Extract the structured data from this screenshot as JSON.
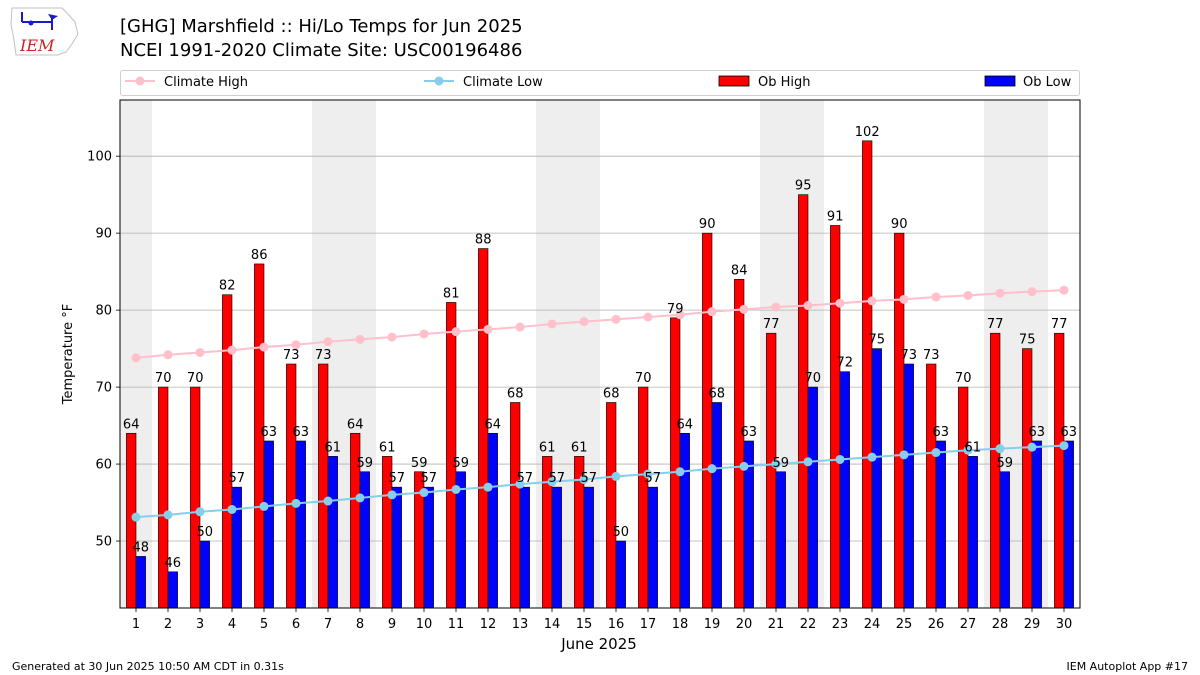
{
  "header": {
    "title_line1": "[GHG] Marshfield :: Hi/Lo Temps for Jun 2025",
    "title_line2": "NCEI 1991-2020 Climate Site: USC00196486",
    "logo_text": "IEM"
  },
  "footer": {
    "left": "Generated at 30 Jun 2025 10:50 AM CDT in 0.31s",
    "right": "IEM Autoplot App #17"
  },
  "colors": {
    "ob_high": "#ff0000",
    "ob_low": "#0000ff",
    "climate_high": "#ffc0cb",
    "climate_low": "#87ceeb",
    "weekend_band": "#eeeeee",
    "grid": "#b0b0b0"
  },
  "chart_data": {
    "type": "bar",
    "title": "[GHG] Marshfield :: Hi/Lo Temps for Jun 2025",
    "subtitle": "NCEI 1991-2020 Climate Site: USC00196486",
    "xlabel": "June 2025",
    "ylabel": "Temperature °F",
    "ylim": [
      41.3,
      107.3
    ],
    "yticks": [
      50,
      60,
      70,
      80,
      90,
      100
    ],
    "grid": true,
    "legend_position": "top",
    "categories": [
      "1",
      "2",
      "3",
      "4",
      "5",
      "6",
      "7",
      "8",
      "9",
      "10",
      "11",
      "12",
      "13",
      "14",
      "15",
      "16",
      "17",
      "18",
      "19",
      "20",
      "21",
      "22",
      "23",
      "24",
      "25",
      "26",
      "27",
      "28",
      "29",
      "30"
    ],
    "shaded_days": [
      1,
      7,
      8,
      14,
      15,
      21,
      22,
      28,
      29
    ],
    "series": [
      {
        "name": "Ob High",
        "kind": "bar",
        "values": [
          64,
          70,
          70,
          82,
          86,
          73,
          73,
          64,
          61,
          59,
          81,
          88,
          68,
          61,
          61,
          68,
          70,
          79,
          90,
          84,
          77,
          95,
          91,
          102,
          90,
          73,
          70,
          77,
          75,
          77
        ]
      },
      {
        "name": "Ob Low",
        "kind": "bar",
        "values": [
          48,
          46,
          50,
          57,
          63,
          63,
          61,
          59,
          57,
          57,
          59,
          64,
          57,
          57,
          57,
          50,
          57,
          64,
          68,
          63,
          59,
          70,
          72,
          75,
          73,
          63,
          61,
          59,
          63,
          63
        ]
      },
      {
        "name": "Climate High",
        "kind": "line",
        "values": [
          73.8,
          74.2,
          74.5,
          74.8,
          75.2,
          75.5,
          75.9,
          76.2,
          76.5,
          76.9,
          77.2,
          77.5,
          77.8,
          78.2,
          78.5,
          78.8,
          79.1,
          79.4,
          79.8,
          80.1,
          80.4,
          80.6,
          80.9,
          81.2,
          81.4,
          81.7,
          81.9,
          82.2,
          82.4,
          82.6
        ]
      },
      {
        "name": "Climate Low",
        "kind": "line",
        "values": [
          53.1,
          53.4,
          53.8,
          54.1,
          54.5,
          54.9,
          55.2,
          55.6,
          56.0,
          56.3,
          56.7,
          57.0,
          57.4,
          57.7,
          58.0,
          58.4,
          58.7,
          59.0,
          59.4,
          59.7,
          60.0,
          60.3,
          60.6,
          60.9,
          61.2,
          61.5,
          61.8,
          62.0,
          62.2,
          62.4
        ]
      }
    ]
  }
}
